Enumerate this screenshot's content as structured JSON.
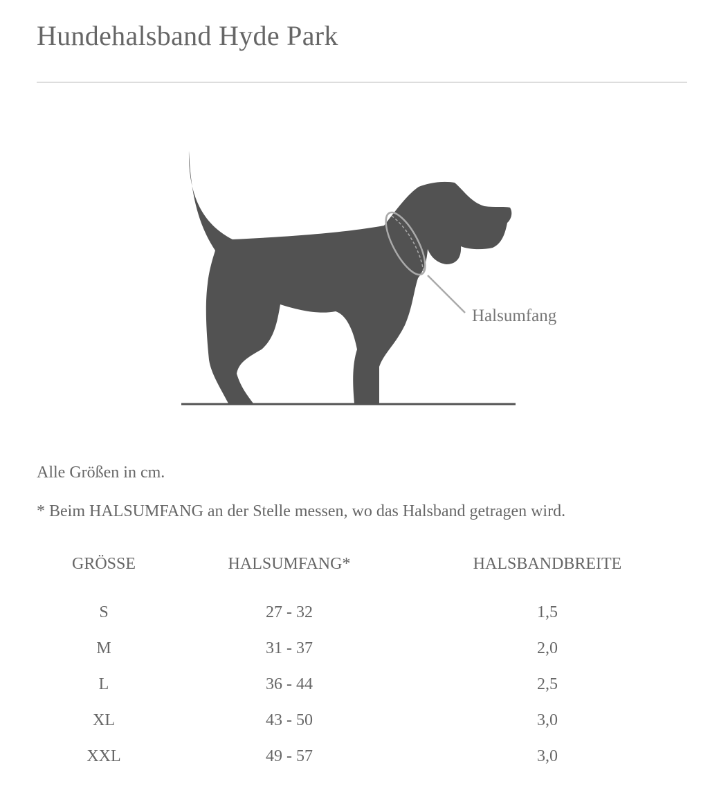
{
  "title": "Hundehalsband Hyde Park",
  "illustration": {
    "label": "Halsumfang",
    "silhouette_color": "#525252"
  },
  "notes": {
    "units": "Alle Größen in cm.",
    "measure": "* Beim HALSUMFANG an der Stelle messen, wo das Halsband getragen wird."
  },
  "table": {
    "headers": [
      "GRÖSSE",
      "HALSUMFANG*",
      "HALSBANDBREITE"
    ],
    "rows": [
      [
        "S",
        "27 - 32",
        "1,5"
      ],
      [
        "M",
        "31 - 37",
        "2,0"
      ],
      [
        "L",
        "36 - 44",
        "2,5"
      ],
      [
        "XL",
        "43 - 50",
        "3,0"
      ],
      [
        "XXL",
        "49 - 57",
        "3,0"
      ]
    ]
  }
}
